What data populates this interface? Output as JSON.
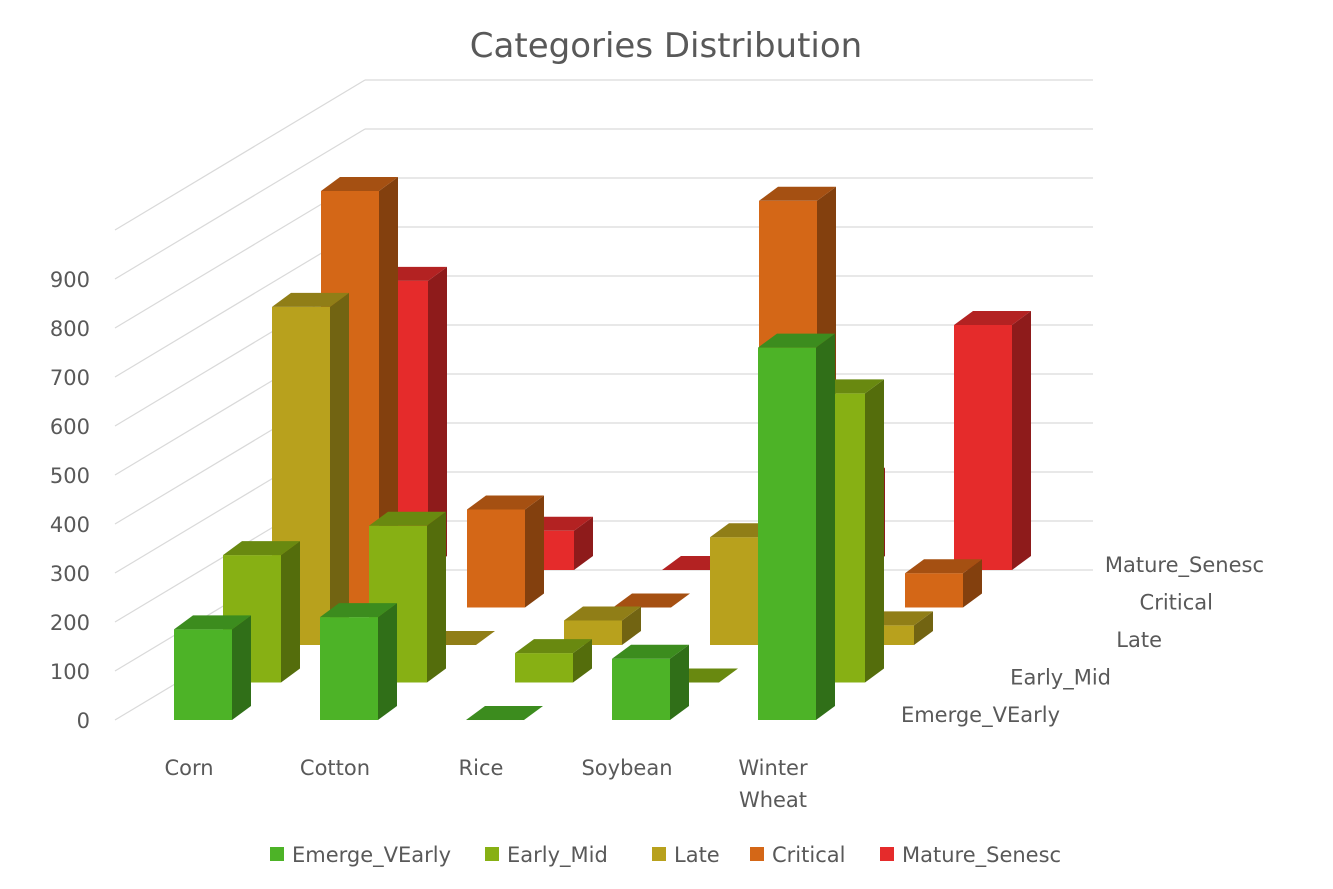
{
  "chart_data": {
    "type": "bar",
    "variant": "3d-column",
    "title": "Categories Distribution",
    "categories": [
      "Corn",
      "Cotton",
      "Rice",
      "Soybean",
      "Winter Wheat"
    ],
    "series": [
      {
        "name": "Emerge_VEarly",
        "color": "#4db327",
        "values": [
          185,
          210,
          0,
          125,
          760
        ]
      },
      {
        "name": "Early_Mid",
        "color": "#87b014",
        "values": [
          260,
          320,
          60,
          0,
          590
        ]
      },
      {
        "name": "Late",
        "color": "#b8a11d",
        "values": [
          690,
          0,
          50,
          220,
          40
        ]
      },
      {
        "name": "Critical",
        "color": "#d46717",
        "values": [
          850,
          200,
          0,
          830,
          70
        ]
      },
      {
        "name": "Mature_Senesc",
        "color": "#e52b2b",
        "values": [
          590,
          80,
          0,
          180,
          500
        ]
      }
    ],
    "y_ticks": [
      "0",
      "100",
      "200",
      "300",
      "400",
      "500",
      "600",
      "700",
      "800",
      "900"
    ],
    "ylim": [
      0,
      1000
    ],
    "grid": true,
    "legend_position": "bottom"
  }
}
